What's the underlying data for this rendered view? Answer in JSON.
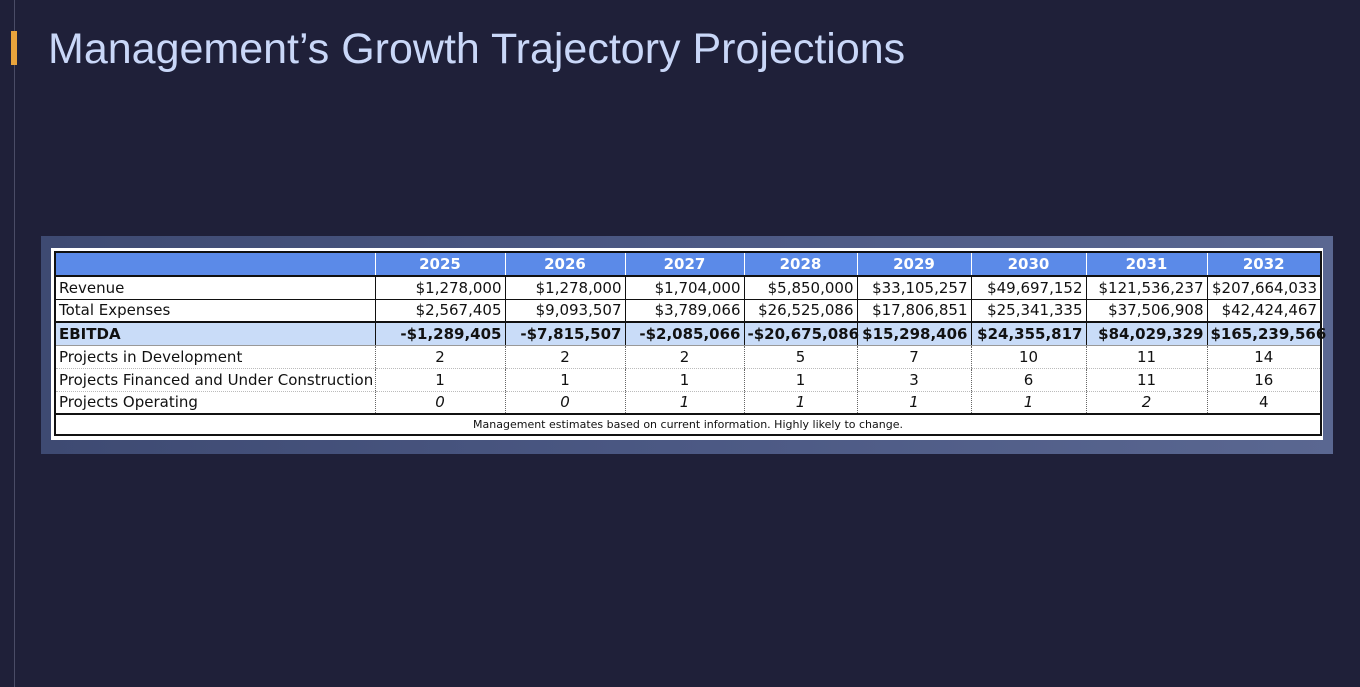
{
  "slide": {
    "title": "Management’s Growth Trajectory Projections"
  },
  "colors": {
    "background": "#1f2039",
    "title": "#c9d7f8",
    "accent": "#e8a33c",
    "header_fill": "#5b8ae8",
    "ebitda_fill": "#c9dcf8"
  },
  "table": {
    "years": [
      "2025",
      "2026",
      "2027",
      "2028",
      "2029",
      "2030",
      "2031",
      "2032"
    ],
    "rows": {
      "revenue": {
        "label": "Revenue",
        "values": [
          "$1,278,000",
          "$1,278,000",
          "$1,704,000",
          "$5,850,000",
          "$33,105,257",
          "$49,697,152",
          "$121,536,237",
          "$207,664,033"
        ]
      },
      "expenses": {
        "label": "Total Expenses",
        "values": [
          "$2,567,405",
          "$9,093,507",
          "$3,789,066",
          "$26,525,086",
          "$17,806,851",
          "$25,341,335",
          "$37,506,908",
          "$42,424,467"
        ]
      },
      "ebitda": {
        "label": "EBITDA",
        "values": [
          "-$1,289,405",
          "-$7,815,507",
          "-$2,085,066",
          "-$20,675,086",
          "$15,298,406",
          "$24,355,817",
          "$84,029,329",
          "$165,239,566"
        ]
      },
      "development": {
        "label": "Projects in Development",
        "values": [
          "2",
          "2",
          "2",
          "5",
          "7",
          "10",
          "11",
          "14"
        ]
      },
      "financed": {
        "label": "Projects Financed and Under Construction",
        "values": [
          "1",
          "1",
          "1",
          "1",
          "3",
          "6",
          "11",
          "16"
        ]
      },
      "operating": {
        "label": "Projects Operating",
        "values": [
          "0",
          "0",
          "1",
          "1",
          "1",
          "1",
          "2",
          "4"
        ]
      }
    },
    "footnote": "Management estimates based on current information. Highly likely to change."
  }
}
